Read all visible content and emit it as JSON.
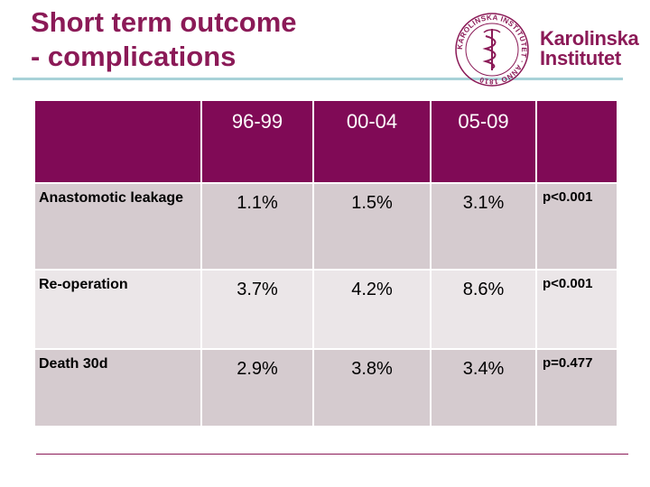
{
  "title": {
    "line1": "Short term outcome",
    "line2": "- complications"
  },
  "logo": {
    "seal_text": "KAROLINSKA INSTITUTET · ANNO 1810",
    "line1": "Karolinska",
    "line2": "Institutet",
    "brand_color": "#8b1a57"
  },
  "table": {
    "headers": [
      "",
      "96-99",
      "00-04",
      "05-09",
      ""
    ],
    "rows": [
      {
        "label": "Anastomotic leakage",
        "values": [
          "1.1%",
          "1.5%",
          "3.1%"
        ],
        "p": "p<0.001"
      },
      {
        "label": "Re-operation",
        "values": [
          "3.7%",
          "4.2%",
          "8.6%"
        ],
        "p": "p<0.001"
      },
      {
        "label": "Death 30d",
        "values": [
          "2.9%",
          "3.8%",
          "3.4%"
        ],
        "p": "p=0.477"
      }
    ]
  },
  "colors": {
    "header_bg": "#800a56",
    "row_dark": "#d5cbcf",
    "row_light": "#ebe6e8",
    "accent_rule": "#a8d2d8"
  }
}
